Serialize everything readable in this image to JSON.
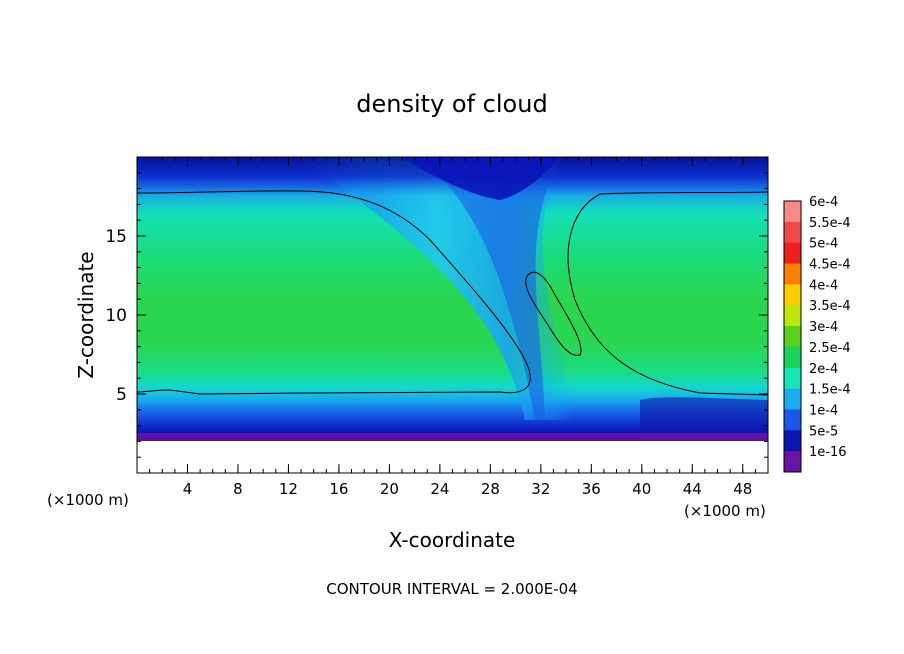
{
  "chart_data": {
    "type": "heatmap",
    "title": "density of cloud",
    "xlabel": "X-coordinate",
    "ylabel": "Z-coordinate",
    "x_unit_left": "(×1000 m)",
    "x_unit_right": "(×1000 m)",
    "xlim": [
      0,
      50
    ],
    "ylim": [
      0,
      20
    ],
    "xticks": [
      "4",
      "8",
      "12",
      "16",
      "20",
      "24",
      "28",
      "32",
      "36",
      "40",
      "44",
      "48"
    ],
    "yticks": [
      "5",
      "10",
      "15"
    ],
    "footnote": "CONTOUR INTERVAL = 2.000E-04",
    "colorbar": {
      "labels": [
        "6e-4",
        "5.5e-4",
        "5e-4",
        "4.5e-4",
        "4e-4",
        "3.5e-4",
        "3e-4",
        "2.5e-4",
        "2e-4",
        "1.5e-4",
        "1e-4",
        "5e-5",
        "1e-16"
      ],
      "colors": [
        "#f88a88",
        "#f44747",
        "#f01e1e",
        "#ff7f00",
        "#ffcc00",
        "#bfe60a",
        "#5ad01a",
        "#19d25a",
        "#14e6b4",
        "#1aaef0",
        "#1c56ec",
        "#0a14b0",
        "#6a14a6"
      ]
    },
    "contour_levels": [
      "2.000E-04"
    ],
    "grid": false
  }
}
